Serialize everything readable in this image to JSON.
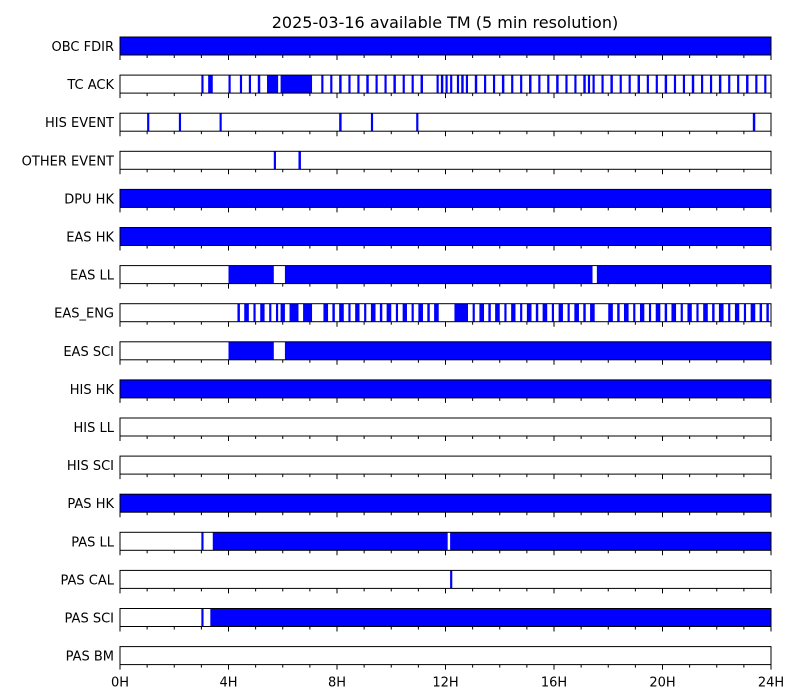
{
  "chart_data": {
    "type": "timeline",
    "title": "2025-03-16 available TM (5 min resolution)",
    "x_unit": "hours",
    "xlim": [
      0,
      24
    ],
    "x_ticks": [
      0,
      4,
      8,
      12,
      16,
      20,
      24
    ],
    "x_tick_labels": [
      "0H",
      "4H",
      "8H",
      "12H",
      "16H",
      "20H",
      "24H"
    ],
    "x_minor_step": 1,
    "bar_color": "#0000ff",
    "rows": [
      {
        "label": "OBC FDIR",
        "segments": [
          [
            0,
            24
          ]
        ]
      },
      {
        "label": "TC ACK",
        "segments": [
          [
            3.0,
            3.08
          ],
          [
            3.25,
            3.42
          ],
          [
            4.0,
            4.08
          ],
          [
            4.42,
            4.5
          ],
          [
            4.75,
            4.83
          ],
          [
            5.08,
            5.17
          ],
          [
            5.42,
            5.83
          ],
          [
            5.92,
            7.08
          ],
          [
            7.42,
            7.5
          ],
          [
            7.75,
            7.83
          ],
          [
            8.08,
            8.17
          ],
          [
            8.42,
            8.5
          ],
          [
            8.75,
            8.83
          ],
          [
            9.08,
            9.17
          ],
          [
            9.42,
            9.5
          ],
          [
            9.75,
            9.83
          ],
          [
            10.08,
            10.17
          ],
          [
            10.42,
            10.5
          ],
          [
            10.75,
            10.83
          ],
          [
            11.08,
            11.17
          ],
          [
            11.67,
            11.75
          ],
          [
            11.83,
            11.92
          ],
          [
            12.0,
            12.08
          ],
          [
            12.17,
            12.25
          ],
          [
            12.42,
            12.5
          ],
          [
            12.58,
            12.67
          ],
          [
            12.75,
            12.83
          ],
          [
            13.08,
            13.17
          ],
          [
            13.42,
            13.5
          ],
          [
            13.75,
            13.83
          ],
          [
            14.08,
            14.17
          ],
          [
            14.42,
            14.5
          ],
          [
            14.75,
            14.83
          ],
          [
            15.08,
            15.17
          ],
          [
            15.42,
            15.5
          ],
          [
            15.75,
            15.83
          ],
          [
            16.08,
            16.17
          ],
          [
            16.42,
            16.5
          ],
          [
            16.75,
            16.83
          ],
          [
            17.08,
            17.17
          ],
          [
            17.25,
            17.33
          ],
          [
            17.42,
            17.5
          ],
          [
            17.75,
            17.83
          ],
          [
            18.08,
            18.17
          ],
          [
            18.42,
            18.5
          ],
          [
            18.75,
            18.83
          ],
          [
            19.08,
            19.17
          ],
          [
            19.42,
            19.5
          ],
          [
            19.75,
            19.83
          ],
          [
            20.08,
            20.17
          ],
          [
            20.42,
            20.5
          ],
          [
            20.75,
            20.83
          ],
          [
            21.08,
            21.17
          ],
          [
            21.42,
            21.5
          ],
          [
            21.75,
            21.83
          ],
          [
            22.08,
            22.17
          ],
          [
            22.42,
            22.5
          ],
          [
            22.75,
            22.83
          ],
          [
            23.08,
            23.17
          ],
          [
            23.42,
            23.5
          ],
          [
            23.75,
            23.83
          ]
        ]
      },
      {
        "label": "HIS EVENT",
        "segments": [
          [
            1.0,
            1.08
          ],
          [
            2.17,
            2.25
          ],
          [
            3.67,
            3.75
          ],
          [
            8.08,
            8.17
          ],
          [
            9.25,
            9.33
          ],
          [
            10.92,
            11.0
          ],
          [
            23.33,
            23.42
          ]
        ]
      },
      {
        "label": "OTHER EVENT",
        "segments": [
          [
            5.67,
            5.75
          ],
          [
            6.58,
            6.67
          ]
        ]
      },
      {
        "label": "DPU HK",
        "segments": [
          [
            0,
            24
          ]
        ]
      },
      {
        "label": "EAS HK",
        "segments": [
          [
            0,
            24
          ]
        ]
      },
      {
        "label": "EAS LL",
        "segments": [
          [
            4.0,
            5.67
          ],
          [
            6.08,
            17.42
          ],
          [
            17.58,
            24
          ]
        ]
      },
      {
        "label": "EAS_ENG",
        "segments": [
          [
            4.33,
            4.42
          ],
          [
            4.58,
            4.75
          ],
          [
            4.92,
            5.0
          ],
          [
            5.17,
            5.33
          ],
          [
            5.5,
            5.58
          ],
          [
            5.75,
            5.83
          ],
          [
            5.92,
            6.08
          ],
          [
            6.25,
            6.58
          ],
          [
            6.75,
            7.08
          ],
          [
            7.5,
            7.67
          ],
          [
            7.83,
            7.92
          ],
          [
            8.08,
            8.25
          ],
          [
            8.42,
            8.5
          ],
          [
            8.67,
            8.83
          ],
          [
            9.0,
            9.08
          ],
          [
            9.25,
            9.42
          ],
          [
            9.58,
            9.67
          ],
          [
            9.83,
            10.0
          ],
          [
            10.17,
            10.25
          ],
          [
            10.42,
            10.58
          ],
          [
            10.75,
            10.83
          ],
          [
            11.0,
            11.17
          ],
          [
            11.33,
            11.42
          ],
          [
            11.58,
            11.75
          ],
          [
            12.33,
            12.83
          ],
          [
            13.0,
            13.08
          ],
          [
            13.25,
            13.42
          ],
          [
            13.58,
            13.67
          ],
          [
            13.83,
            14.0
          ],
          [
            14.17,
            14.25
          ],
          [
            14.42,
            14.58
          ],
          [
            14.75,
            14.83
          ],
          [
            15.0,
            15.17
          ],
          [
            15.33,
            15.42
          ],
          [
            15.58,
            15.75
          ],
          [
            15.92,
            16.0
          ],
          [
            16.17,
            16.33
          ],
          [
            16.5,
            16.58
          ],
          [
            16.75,
            16.92
          ],
          [
            17.08,
            17.17
          ],
          [
            17.33,
            17.5
          ],
          [
            18.0,
            18.17
          ],
          [
            18.33,
            18.42
          ],
          [
            18.58,
            18.75
          ],
          [
            18.92,
            19.0
          ],
          [
            19.17,
            19.33
          ],
          [
            19.5,
            19.58
          ],
          [
            19.75,
            19.92
          ],
          [
            20.08,
            20.17
          ],
          [
            20.33,
            20.5
          ],
          [
            20.67,
            20.75
          ],
          [
            20.92,
            21.08
          ],
          [
            21.25,
            21.33
          ],
          [
            21.5,
            21.67
          ],
          [
            21.83,
            21.92
          ],
          [
            22.08,
            22.25
          ],
          [
            22.42,
            22.5
          ],
          [
            22.67,
            22.83
          ],
          [
            23.0,
            23.08
          ],
          [
            23.25,
            23.42
          ],
          [
            23.58,
            23.67
          ],
          [
            23.83,
            23.92
          ]
        ]
      },
      {
        "label": "EAS SCI",
        "segments": [
          [
            4.0,
            5.67
          ],
          [
            6.08,
            24
          ]
        ]
      },
      {
        "label": "HIS HK",
        "segments": [
          [
            0,
            24
          ]
        ]
      },
      {
        "label": "HIS LL",
        "segments": []
      },
      {
        "label": "HIS SCI",
        "segments": []
      },
      {
        "label": "PAS HK",
        "segments": [
          [
            0,
            24
          ]
        ]
      },
      {
        "label": "PAS LL",
        "segments": [
          [
            3.0,
            3.08
          ],
          [
            3.42,
            12.08
          ],
          [
            12.17,
            24
          ]
        ]
      },
      {
        "label": "PAS CAL",
        "segments": [
          [
            12.17,
            12.25
          ]
        ]
      },
      {
        "label": "PAS SCI",
        "segments": [
          [
            3.0,
            3.08
          ],
          [
            3.33,
            24
          ]
        ]
      },
      {
        "label": "PAS BM",
        "segments": []
      }
    ]
  }
}
